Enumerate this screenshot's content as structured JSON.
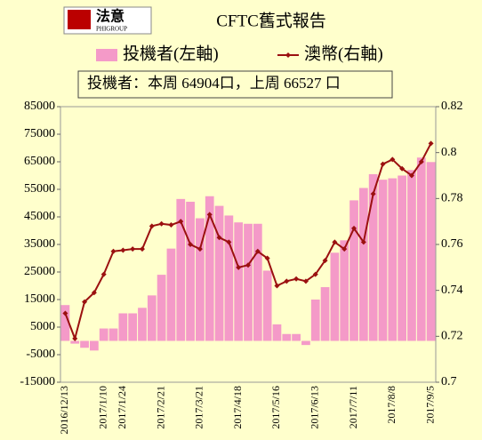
{
  "logo": {
    "name": "法意",
    "sub": "PHIGROUP"
  },
  "chart_data": {
    "type": "bar",
    "title": "CFTC舊式報告",
    "annotation": "投機者：本周 64904口，上周 66527 口",
    "categories": [
      "2016/12/13",
      null,
      null,
      null,
      "2017/1/10",
      null,
      "2017/1/24",
      null,
      null,
      null,
      "2017/2/21",
      null,
      null,
      null,
      "2017/3/21",
      null,
      null,
      null,
      "2017/4/18",
      null,
      null,
      null,
      "2017/5/16",
      null,
      null,
      null,
      "2017/6/13",
      null,
      null,
      null,
      "2017/7/11",
      null,
      null,
      null,
      "2017/8/8",
      null,
      null,
      null,
      "2017/9/5"
    ],
    "series": [
      {
        "name": "投機者(左軸)",
        "type": "bar",
        "color": "#f49ac8",
        "axis": "y",
        "values": [
          13000,
          -1000,
          -2500,
          -3500,
          4500,
          4500,
          10000,
          10000,
          12000,
          16500,
          24000,
          33500,
          51500,
          50500,
          44500,
          52500,
          49000,
          45500,
          43000,
          42500,
          42500,
          25500,
          6000,
          2500,
          2500,
          -1500,
          15000,
          19500,
          32000,
          36500,
          51000,
          55500,
          60500,
          58500,
          59000,
          60000,
          62000,
          66527,
          64904
        ]
      },
      {
        "name": "澳幣(右軸)",
        "type": "line",
        "color": "#9b1010",
        "axis": "y2",
        "values": [
          0.73,
          0.719,
          0.735,
          0.739,
          0.747,
          0.757,
          0.7575,
          0.758,
          0.758,
          0.768,
          0.769,
          0.7685,
          0.77,
          0.76,
          0.758,
          0.773,
          0.763,
          0.761,
          0.75,
          0.751,
          0.757,
          0.754,
          0.742,
          0.744,
          0.745,
          0.744,
          0.747,
          0.753,
          0.761,
          0.758,
          0.767,
          0.761,
          0.782,
          0.795,
          0.797,
          0.793,
          0.79,
          0.796,
          0.804
        ]
      }
    ],
    "ylim": [
      -15000,
      85000
    ],
    "yticks": [
      85000,
      75000,
      65000,
      55000,
      45000,
      35000,
      25000,
      15000,
      5000,
      -5000,
      -15000
    ],
    "y2lim": [
      0.7,
      0.82
    ],
    "y2ticks": [
      0.82,
      0.8,
      0.78,
      0.76,
      0.74,
      0.72,
      0.7
    ]
  }
}
